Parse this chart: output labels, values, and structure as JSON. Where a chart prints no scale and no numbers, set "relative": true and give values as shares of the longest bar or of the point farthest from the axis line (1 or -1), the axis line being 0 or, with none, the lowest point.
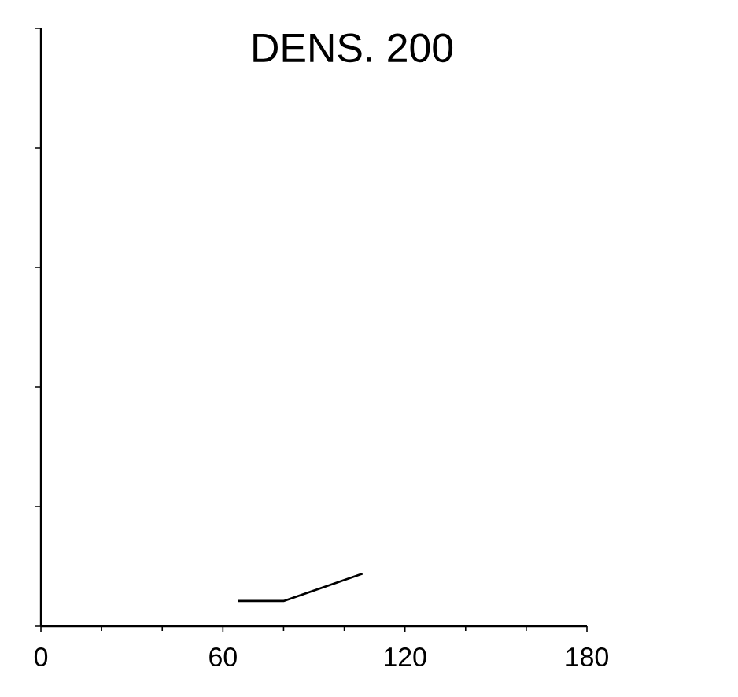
{
  "chart_data": {
    "type": "line",
    "title": "DENS. 200",
    "relative": true,
    "tick_labels": "x",
    "xlim": [
      0,
      180
    ],
    "xticks": [
      0,
      60,
      120,
      180
    ],
    "series": [
      {
        "color": "#000000",
        "x": [
          65,
          80,
          106
        ],
        "values": [
          0.48,
          0.48,
          1
        ]
      }
    ],
    "marker": "none",
    "line_style": "solid",
    "grid": false,
    "legend": false
  }
}
